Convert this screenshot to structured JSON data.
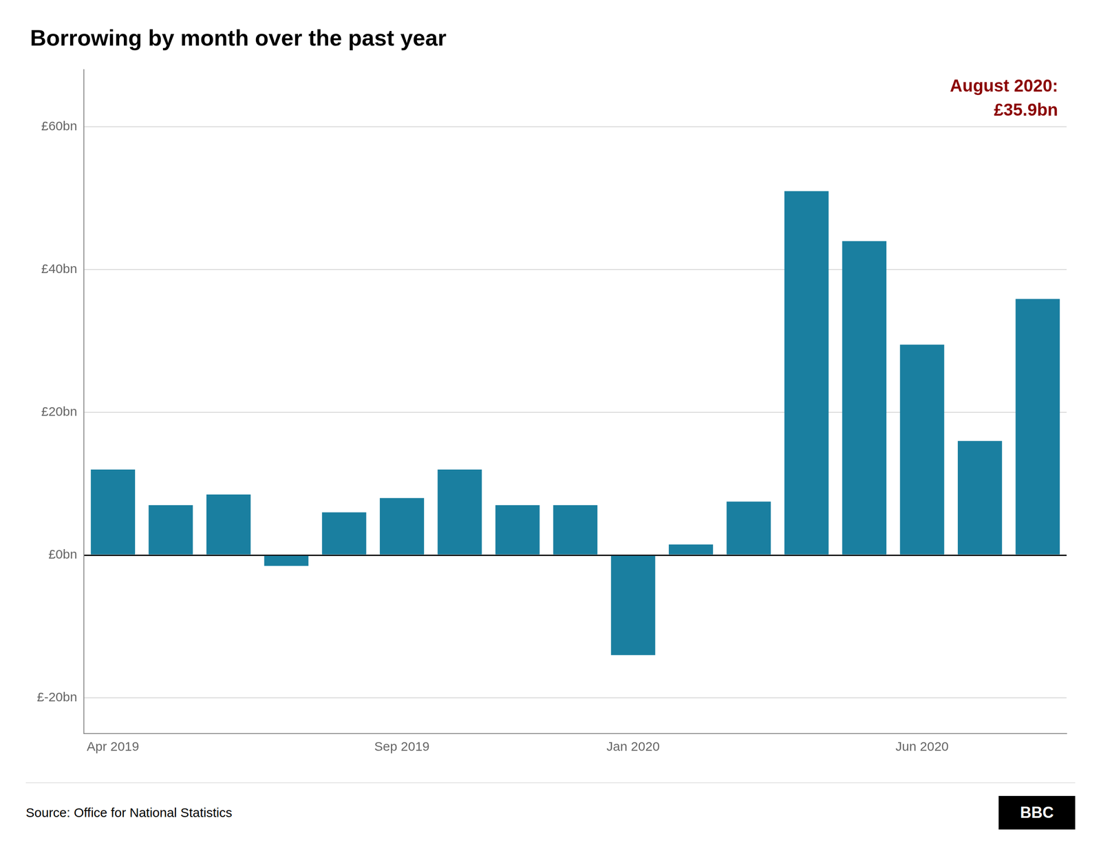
{
  "chart_data": {
    "type": "bar",
    "title": "Borrowing by month over the past year",
    "categories": [
      "Apr 2019",
      null,
      null,
      null,
      null,
      "Sep 2019",
      null,
      null,
      null,
      "Jan 2020",
      null,
      null,
      null,
      null,
      "Jun 2020",
      null,
      null
    ],
    "values": [
      12.0,
      7.0,
      8.5,
      -1.5,
      6.0,
      8.0,
      12.0,
      7.0,
      7.0,
      -14.0,
      1.5,
      7.5,
      51.0,
      44.0,
      29.5,
      16.0,
      35.9
    ],
    "color": "#1a7fa0",
    "ylim": [
      -25,
      68
    ],
    "yticks": [
      {
        "value": -20,
        "label": "£-20bn"
      },
      {
        "value": 0,
        "label": "£0bn"
      },
      {
        "value": 20,
        "label": "£20bn"
      },
      {
        "value": 40,
        "label": "£40bn"
      },
      {
        "value": 60,
        "label": "£60bn"
      }
    ],
    "grid": true,
    "annotations": [
      {
        "text": "August 2020:\n£35.9bn",
        "color": "#8b0000"
      }
    ],
    "source": "Source: Office for National Statistics",
    "credit": "BBC"
  }
}
